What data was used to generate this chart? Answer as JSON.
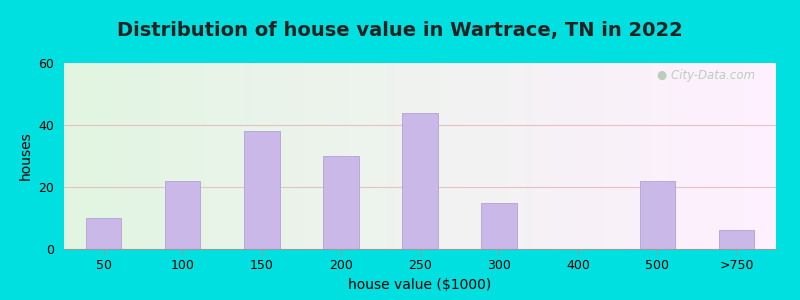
{
  "title": "Distribution of house value in Wartrace, TN in 2022",
  "xlabel": "house value ($1000)",
  "ylabel": "houses",
  "categories": [
    "50",
    "100",
    "150",
    "200",
    "250",
    "300",
    "400",
    "500",
    ">750"
  ],
  "values": [
    10,
    22,
    38,
    30,
    44,
    15,
    0,
    22,
    6
  ],
  "bar_color": "#c9b8e8",
  "bar_edge_color": "#b8a8d8",
  "ylim": [
    0,
    60
  ],
  "yticks": [
    0,
    20,
    40,
    60
  ],
  "background_outer": "#00e0e0",
  "title_fontsize": 14,
  "axis_label_fontsize": 10,
  "tick_fontsize": 9,
  "watermark_text": "City-Data.com"
}
